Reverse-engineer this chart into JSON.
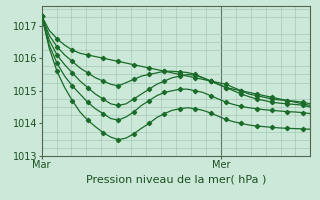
{
  "xlabel": "Pression niveau de la mer( hPa )",
  "bg_color": "#cce8d8",
  "grid_color": "#99c4aa",
  "line_color": "#1a6b2a",
  "ylim": [
    1013.0,
    1017.6
  ],
  "xlim": [
    0,
    36
  ],
  "ytick_positions": [
    1013,
    1014,
    1015,
    1016,
    1017
  ],
  "ytick_labels": [
    "1013",
    "1014",
    "1015",
    "1016",
    "1017"
  ],
  "xtick_mar": 0,
  "xtick_mer": 24,
  "vline_x": 24,
  "series": [
    [
      1017.3,
      1016.85,
      1016.6,
      1016.4,
      1016.25,
      1016.15,
      1016.1,
      1016.05,
      1016.0,
      1015.95,
      1015.9,
      1015.85,
      1015.8,
      1015.75,
      1015.7,
      1015.65,
      1015.6,
      1015.55,
      1015.5,
      1015.45,
      1015.4,
      1015.35,
      1015.3,
      1015.25,
      1015.2,
      1015.1,
      1015.0,
      1014.9,
      1014.85,
      1014.8,
      1014.75,
      1014.72,
      1014.7,
      1014.68,
      1014.65,
      1014.6
    ],
    [
      1017.3,
      1016.7,
      1016.35,
      1016.1,
      1015.9,
      1015.7,
      1015.55,
      1015.4,
      1015.3,
      1015.2,
      1015.15,
      1015.25,
      1015.35,
      1015.45,
      1015.5,
      1015.55,
      1015.6,
      1015.6,
      1015.58,
      1015.56,
      1015.5,
      1015.4,
      1015.3,
      1015.2,
      1015.1,
      1015.05,
      1015.0,
      1014.95,
      1014.9,
      1014.85,
      1014.8,
      1014.75,
      1014.7,
      1014.65,
      1014.6,
      1014.55
    ],
    [
      1017.3,
      1016.55,
      1016.1,
      1015.8,
      1015.55,
      1015.3,
      1015.1,
      1014.9,
      1014.75,
      1014.6,
      1014.55,
      1014.6,
      1014.75,
      1014.9,
      1015.05,
      1015.2,
      1015.3,
      1015.4,
      1015.45,
      1015.5,
      1015.48,
      1015.4,
      1015.3,
      1015.2,
      1015.1,
      1015.0,
      1014.9,
      1014.82,
      1014.75,
      1014.7,
      1014.65,
      1014.62,
      1014.6,
      1014.58,
      1014.56,
      1014.5
    ],
    [
      1017.3,
      1016.4,
      1015.85,
      1015.45,
      1015.15,
      1014.9,
      1014.65,
      1014.45,
      1014.3,
      1014.15,
      1014.1,
      1014.2,
      1014.35,
      1014.55,
      1014.7,
      1014.85,
      1014.95,
      1015.0,
      1015.05,
      1015.05,
      1015.0,
      1014.95,
      1014.85,
      1014.75,
      1014.65,
      1014.58,
      1014.52,
      1014.48,
      1014.45,
      1014.42,
      1014.4,
      1014.38,
      1014.36,
      1014.35,
      1014.33,
      1014.3
    ],
    [
      1017.3,
      1016.3,
      1015.6,
      1015.1,
      1014.7,
      1014.35,
      1014.1,
      1013.9,
      1013.72,
      1013.58,
      1013.5,
      1013.55,
      1013.68,
      1013.85,
      1014.0,
      1014.18,
      1014.3,
      1014.4,
      1014.45,
      1014.48,
      1014.45,
      1014.4,
      1014.32,
      1014.22,
      1014.12,
      1014.05,
      1014.0,
      1013.95,
      1013.92,
      1013.9,
      1013.88,
      1013.86,
      1013.85,
      1013.84,
      1013.83,
      1013.82
    ]
  ]
}
